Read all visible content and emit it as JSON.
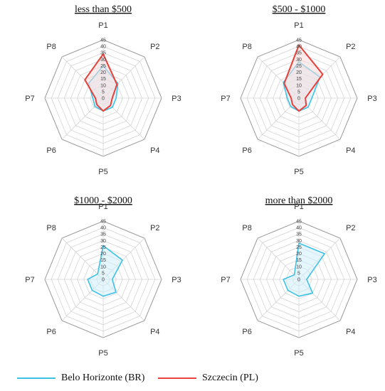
{
  "chart_data": [
    {
      "type": "radar",
      "title": "less than $500",
      "categories": [
        "P1",
        "P2",
        "P3",
        "P4",
        "P5",
        "P6",
        "P7",
        "P8"
      ],
      "radial_ticks": [
        "0",
        "5",
        "10",
        "15",
        "20",
        "25",
        "30",
        "35",
        "40",
        "45"
      ],
      "rmax": 45,
      "series": [
        {
          "name": "Belo Horizonte (BR)",
          "values": [
            25,
            16,
            10,
            10,
            10,
            9,
            8,
            16
          ]
        },
        {
          "name": "Szczecin (PL)",
          "values": [
            34,
            15,
            7,
            8,
            10,
            7,
            6,
            20
          ]
        }
      ]
    },
    {
      "type": "radar",
      "title": "$500 - $1000",
      "categories": [
        "P1",
        "P2",
        "P3",
        "P4",
        "P5",
        "P6",
        "P7",
        "P8"
      ],
      "radial_ticks": [
        "0",
        "5",
        "10",
        "15",
        "20",
        "25",
        "30",
        "35",
        "40",
        "45"
      ],
      "rmax": 45,
      "series": [
        {
          "name": "Belo Horizonte (BR)",
          "values": [
            28,
            23,
            10,
            10,
            10,
            9,
            9,
            17
          ]
        },
        {
          "name": "Szczecin (PL)",
          "values": [
            41,
            26,
            5,
            8,
            10,
            7,
            6,
            16
          ]
        }
      ]
    },
    {
      "type": "radar",
      "title": "$1000 - $2000",
      "categories": [
        "P1",
        "P2",
        "P3",
        "P4",
        "P5",
        "P6",
        "P7",
        "P8"
      ],
      "radial_ticks": [
        "0",
        "5",
        "10",
        "15",
        "20",
        "25",
        "30",
        "35",
        "40",
        "45"
      ],
      "rmax": 45,
      "series": [
        {
          "name": "Belo Horizonte (BR)",
          "values": [
            26,
            21,
            7,
            14,
            13,
            12,
            12,
            6
          ]
        }
      ]
    },
    {
      "type": "radar",
      "title": "more than $2000",
      "categories": [
        "P1",
        "P2",
        "P3",
        "P4",
        "P5",
        "P6",
        "P7",
        "P8"
      ],
      "radial_ticks": [
        "0",
        "5",
        "10",
        "15",
        "20",
        "25",
        "30",
        "35",
        "40",
        "45"
      ],
      "rmax": 45,
      "series": [
        {
          "name": "Belo Horizonte (BR)",
          "values": [
            28,
            28,
            6,
            15,
            13,
            12,
            12,
            5
          ]
        }
      ]
    }
  ],
  "legend": {
    "items": [
      {
        "label": "Belo Horizonte (BR)",
        "color": "#3ec1e6"
      },
      {
        "label": "Szczecin (PL)",
        "color": "#e8403a"
      }
    ]
  },
  "colors": {
    "Belo Horizonte (BR)": {
      "stroke": "#3ec1e6",
      "fill": "#cfeefa"
    },
    "Szczecin (PL)": {
      "stroke": "#e8403a",
      "fill": "#f8dada"
    }
  }
}
